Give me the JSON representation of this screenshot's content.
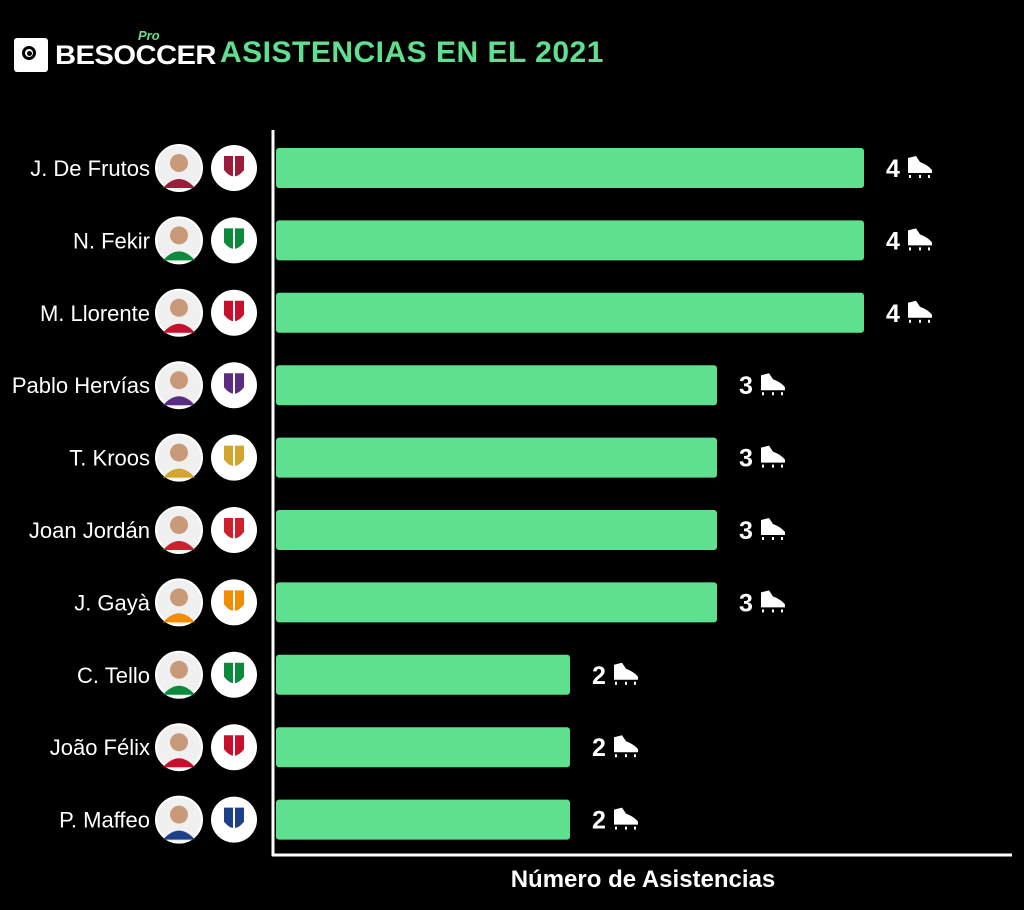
{
  "header": {
    "brand": "BESOCCER",
    "brand_tag": "Pro",
    "title": "ASISTENCIAS EN EL 2021"
  },
  "colors": {
    "bar": "#5ee08e",
    "title": "#5ee08e",
    "background": "#000000",
    "axis": "#ffffff"
  },
  "chart_data": {
    "type": "bar",
    "orientation": "horizontal",
    "title": "ASISTENCIAS EN EL 2021",
    "xlabel": "Número de Asistencias",
    "ylabel": "",
    "xlim": [
      0,
      4
    ],
    "categories": [
      "J. De Frutos",
      "N. Fekir",
      "M. Llorente",
      "Pablo Hervías",
      "T. Kroos",
      "Joan Jordán",
      "J. Gayà",
      "C. Tello",
      "João Félix",
      "P. Maffeo"
    ],
    "values": [
      4,
      4,
      4,
      3,
      3,
      3,
      3,
      2,
      2,
      2
    ],
    "value_icon": "football-boot-icon",
    "teams": [
      "Levante",
      "Betis",
      "Atlético de Madrid",
      "Valladolid",
      "Real Madrid",
      "Sevilla",
      "Valencia",
      "Betis",
      "Atlético de Madrid",
      "Huesca"
    ],
    "team_colors": [
      "#9c1d3a",
      "#0b8a3e",
      "#c8102e",
      "#5a2d82",
      "#d4a52c",
      "#d0202e",
      "#f28c00",
      "#0b8a3e",
      "#c8102e",
      "#1e3f8a"
    ]
  }
}
